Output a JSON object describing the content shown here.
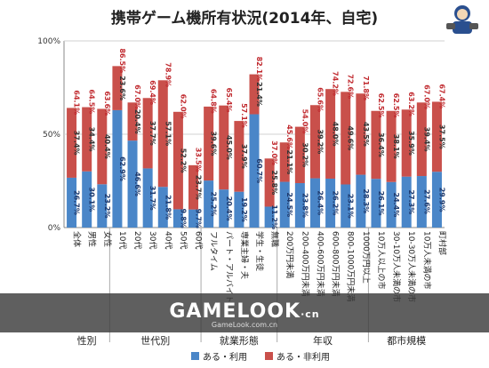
{
  "header": {
    "title": "携帯ゲーム機所有状況(2014年、自宅)"
  },
  "watermark": {
    "brand": "GAMELOOK",
    "domain_suffix": "·cn",
    "url": "GameLook.com.cn"
  },
  "legend": {
    "items": [
      {
        "label": "ある・利用",
        "color": "#4a86c8"
      },
      {
        "label": "ある・非利用",
        "color": "#c9504b"
      }
    ]
  },
  "groups": [
    {
      "label": "性別"
    },
    {
      "label": "世代別"
    },
    {
      "label": "就業形態"
    },
    {
      "label": "年収"
    },
    {
      "label": "都市規模"
    }
  ],
  "chart_data": {
    "type": "bar",
    "stacked": true,
    "title": "携帯ゲーム機所有状況(2014年、自宅)",
    "xlabel": "",
    "ylabel": "",
    "ylim": [
      0,
      100
    ],
    "yticks": [
      "0%",
      "50%",
      "100%"
    ],
    "grid": true,
    "legend_position": "bottom",
    "categories": [
      "全体",
      "男性",
      "女性",
      "10代",
      "20代",
      "30代",
      "40代",
      "50代",
      "60代",
      "フルタイム",
      "パート・アルバイト",
      "専業主婦・夫",
      "学生・生徒",
      "無職",
      "200万円未満",
      "200-400万円未満",
      "400-600万円未満",
      "600-800万円未満",
      "800-1000万円未満",
      "1000万円以上",
      "10万人以上の市",
      "30-10万人未満の市",
      "10-30万人未満の市",
      "10万人未満の市",
      "町村部"
    ],
    "totals": [
      64.1,
      64.5,
      63.6,
      86.5,
      67.0,
      69.4,
      78.9,
      62.0,
      33.5,
      64.8,
      65.4,
      57.1,
      82.1,
      37.0,
      45.6,
      54.0,
      65.6,
      74.2,
      72.6,
      71.8,
      62.5,
      62.5,
      63.2,
      67.0,
      67.4
    ],
    "series": [
      {
        "name": "ある・利用",
        "color": "#4a86c8",
        "values": [
          26.7,
          30.1,
          23.2,
          62.9,
          46.6,
          31.7,
          21.8,
          9.8,
          9.7,
          25.2,
          20.4,
          19.2,
          60.7,
          11.2,
          24.5,
          23.8,
          26.4,
          26.2,
          23.1,
          28.3,
          26.1,
          24.4,
          27.3,
          27.6,
          29.9
        ]
      },
      {
        "name": "ある・非利用",
        "color": "#c9504b",
        "values": [
          37.4,
          34.4,
          40.4,
          23.6,
          20.4,
          37.7,
          57.1,
          52.2,
          23.7,
          39.6,
          45.0,
          37.9,
          21.4,
          25.8,
          21.1,
          30.2,
          39.2,
          48.0,
          49.6,
          43.5,
          36.4,
          38.1,
          35.9,
          39.4,
          37.5
        ]
      }
    ],
    "groups": [
      {
        "label": "性別",
        "range": [
          0,
          2
        ]
      },
      {
        "label": "世代別",
        "range": [
          3,
          8
        ]
      },
      {
        "label": "就業形態",
        "range": [
          9,
          13
        ]
      },
      {
        "label": "年収",
        "range": [
          14,
          19
        ]
      },
      {
        "label": "都市規模",
        "range": [
          20,
          24
        ]
      }
    ]
  }
}
